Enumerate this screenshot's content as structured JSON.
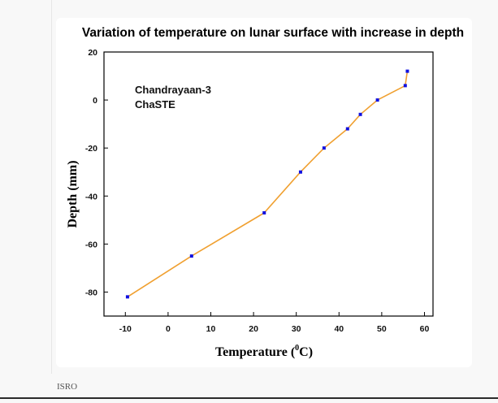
{
  "chart_data": {
    "type": "line",
    "title": "Variation of temperature on lunar surface with increase in depth",
    "xlabel": {
      "main": "Temperature (",
      "sup": "0",
      "unit": "C)"
    },
    "ylabel": "Depth (mm)",
    "annotation": [
      "Chandrayaan-3",
      "ChaSTE"
    ],
    "xlim": [
      -15,
      62
    ],
    "ylim": [
      -90,
      20
    ],
    "x_ticks": [
      -10,
      0,
      10,
      20,
      30,
      40,
      50,
      60
    ],
    "y_ticks": [
      20,
      0,
      -20,
      -40,
      -60,
      -80
    ],
    "grid": false,
    "line_color": "#f0a030",
    "marker_color": "#1010e0",
    "series": [
      {
        "points": [
          {
            "x": -9.5,
            "y": -82
          },
          {
            "x": 5.5,
            "y": -65
          },
          {
            "x": 22.5,
            "y": -47
          },
          {
            "x": 31,
            "y": -30
          },
          {
            "x": 36.5,
            "y": -20
          },
          {
            "x": 42,
            "y": -12
          },
          {
            "x": 45,
            "y": -6
          },
          {
            "x": 49,
            "y": 0
          },
          {
            "x": 55.5,
            "y": 6
          },
          {
            "x": 56,
            "y": 12
          }
        ]
      }
    ]
  },
  "footer": {
    "credit": "ISRO"
  }
}
